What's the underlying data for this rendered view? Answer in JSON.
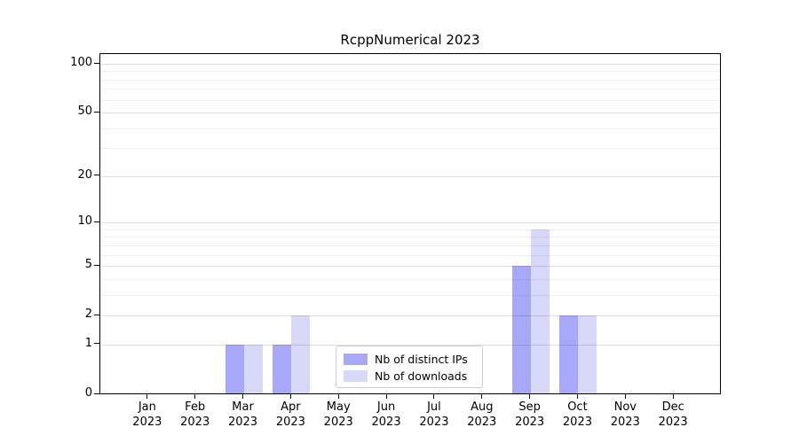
{
  "chart_data": {
    "type": "bar",
    "title": "RcppNumerical 2023",
    "categories": [
      "Jan",
      "Feb",
      "Mar",
      "Apr",
      "May",
      "Jun",
      "Jul",
      "Aug",
      "Sep",
      "Oct",
      "Nov",
      "Dec"
    ],
    "x_tick_year": "2023",
    "series": [
      {
        "name": "Nb of distinct IPs",
        "color": "#a8a8f8",
        "values": [
          0,
          0,
          1,
          1,
          0,
          0,
          0,
          0,
          5,
          2,
          0,
          0
        ]
      },
      {
        "name": "Nb of downloads",
        "color": "#d8d8f8",
        "values": [
          0,
          0,
          1,
          2,
          0,
          0,
          0,
          0,
          9,
          2,
          0,
          0
        ]
      }
    ],
    "y_axis": {
      "scale": "log10(1+x)",
      "major_ticks": [
        0,
        1,
        2,
        5,
        10,
        20,
        50,
        100
      ],
      "minor_gridlines": [
        3,
        4,
        6,
        7,
        8,
        9,
        30,
        40,
        60,
        70,
        80,
        90
      ],
      "range_max": 100
    },
    "xlabel": "",
    "ylabel": "",
    "grid": true,
    "legend_position": "bottom-center"
  }
}
